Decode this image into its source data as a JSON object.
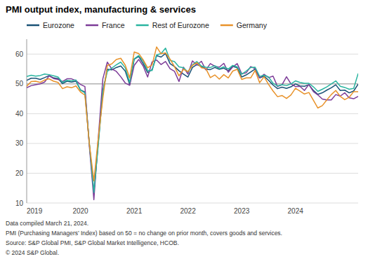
{
  "chart_data": {
    "type": "line",
    "title": "PMI output index, manufacturing & services",
    "annotations": [
      "Data compiled March 21, 2024.",
      "PMI (Purchasing Managers’ Index) based on 50 = no change on prior month, covers goods and services.",
      "Source: S&P Global PMI, S&P Global Market Intelligence, HCOB.",
      "© 2024 S&P Global."
    ],
    "categories": [
      "2019",
      null,
      null,
      null,
      null,
      null,
      null,
      null,
      null,
      null,
      null,
      null,
      "2020",
      null,
      null,
      null,
      null,
      null,
      null,
      null,
      null,
      null,
      null,
      null,
      "2021",
      null,
      null,
      null,
      null,
      null,
      null,
      null,
      null,
      null,
      null,
      null,
      "2022",
      null,
      null,
      null,
      null,
      null,
      null,
      null,
      null,
      null,
      null,
      null,
      "2023",
      null,
      null,
      null,
      null,
      null,
      null,
      null,
      null,
      null,
      null,
      null,
      "2024",
      null,
      null,
      null,
      null,
      null,
      null,
      null,
      null,
      null,
      null,
      null,
      null,
      null,
      null
    ],
    "series": [
      {
        "name": "Eurozone",
        "color": "#1a5276",
        "values": [
          51.2,
          51.9,
          51.9,
          51.5,
          52.1,
          52.8,
          52.0,
          51.8,
          50.1,
          50.9,
          50.6,
          50.9,
          48.0,
          47.3,
          29.7,
          13.6,
          30.5,
          47.5,
          54.9,
          54.7,
          55.5,
          56.0,
          54.3,
          49.8,
          58.3,
          59.2,
          56.8,
          53.8,
          54.8,
          59.5,
          59.0,
          60.2,
          56.8,
          55.8,
          54.4,
          53.3,
          52.3,
          55.5,
          56.5,
          55.8,
          54.9,
          54.8,
          55.5,
          54.9,
          55.3,
          54.4,
          55.9,
          55.4,
          52.3,
          53.0,
          54.0,
          55.0,
          52.0,
          52.6,
          51.2,
          49.6,
          48.4,
          48.9,
          48.5,
          49.0,
          50.0,
          49.3,
          49.2,
          49.7,
          47.8,
          46.5,
          47.0,
          47.9,
          48.7,
          49.7,
          47.8,
          47.9,
          47.0,
          47.6,
          49.9
        ]
      },
      {
        "name": "France",
        "color": "#7d3c98",
        "values": [
          48.7,
          49.4,
          49.7,
          50.0,
          50.6,
          52.7,
          51.8,
          51.5,
          50.8,
          51.7,
          51.7,
          51.1,
          49.8,
          49.1,
          28.9,
          11.1,
          32.1,
          51.7,
          57.3,
          55.0,
          54.2,
          52.4,
          50.3,
          49.5,
          56.2,
          58.2,
          56.0,
          52.3,
          57.4,
          58.0,
          56.5,
          57.5,
          55.1,
          54.2,
          50.8,
          55.6,
          53.3,
          57.7,
          56.3,
          57.6,
          54.7,
          56.8,
          55.9,
          55.6,
          56.9,
          53.9,
          55.7,
          56.8,
          53.4,
          53.7,
          55.8,
          55.1,
          52.0,
          53.2,
          52.1,
          52.6,
          49.1,
          49.7,
          52.4,
          50.0,
          49.1,
          49.2,
          47.8,
          49.8,
          47.4,
          46.3,
          44.9,
          44.6,
          44.6,
          46.4,
          45.9,
          47.0,
          45.3,
          45.0,
          45.8
        ]
      },
      {
        "name": "Rest of Eurozone",
        "color": "#2ab5a0",
        "values": [
          52.5,
          52.9,
          52.6,
          52.8,
          53.3,
          53.1,
          52.7,
          52.3,
          50.5,
          51.2,
          51.0,
          51.3,
          47.9,
          47.0,
          29.8,
          13.5,
          29.8,
          47.5,
          54.2,
          55.3,
          56.4,
          57.3,
          55.4,
          50.5,
          58.4,
          59.5,
          57.7,
          54.5,
          54.5,
          59.7,
          60.2,
          62.0,
          57.9,
          57.5,
          55.7,
          55.4,
          54.0,
          56.4,
          57.5,
          56.0,
          55.6,
          55.5,
          56.1,
          55.1,
          55.7,
          55.0,
          56.2,
          55.7,
          53.2,
          54.3,
          55.5,
          55.6,
          52.5,
          52.9,
          52.3,
          50.2,
          49.3,
          49.7,
          49.4,
          50.0,
          51.0,
          50.5,
          50.2,
          50.2,
          49.0,
          47.5,
          48.2,
          49.0,
          50.0,
          51.0,
          49.2,
          48.8,
          48.2,
          48.5,
          53.5
        ]
      },
      {
        "name": "Germany",
        "color": "#e8922a",
        "values": [
          49.2,
          50.8,
          50.9,
          50.5,
          51.3,
          51.7,
          50.9,
          50.5,
          48.4,
          49.0,
          48.7,
          49.3,
          47.3,
          46.2,
          29.7,
          17.4,
          32.0,
          45.2,
          56.2,
          56.7,
          58.2,
          58.6,
          56.3,
          52.0,
          60.7,
          60.2,
          58.1,
          55.4,
          56.4,
          62.4,
          60.1,
          60.4,
          58.3,
          55.8,
          52.7,
          54.9,
          54.1,
          56.2,
          57.1,
          55.4,
          55.1,
          52.1,
          53.0,
          51.6,
          53.1,
          52.0,
          54.3,
          54.9,
          51.5,
          52.0,
          52.0,
          54.5,
          50.4,
          52.4,
          49.8,
          47.6,
          45.7,
          46.1,
          45.1,
          46.3,
          48.5,
          47.6,
          46.6,
          47.1,
          44.5,
          41.9,
          42.7,
          44.6,
          46.4,
          47.8,
          45.8,
          44.7,
          45.5,
          47.4,
          47.4
        ]
      }
    ],
    "reference_line": 50,
    "ylim": [
      10,
      65
    ],
    "yticks": [
      10,
      20,
      30,
      40,
      50,
      60
    ],
    "grid": true,
    "legend": "top"
  }
}
